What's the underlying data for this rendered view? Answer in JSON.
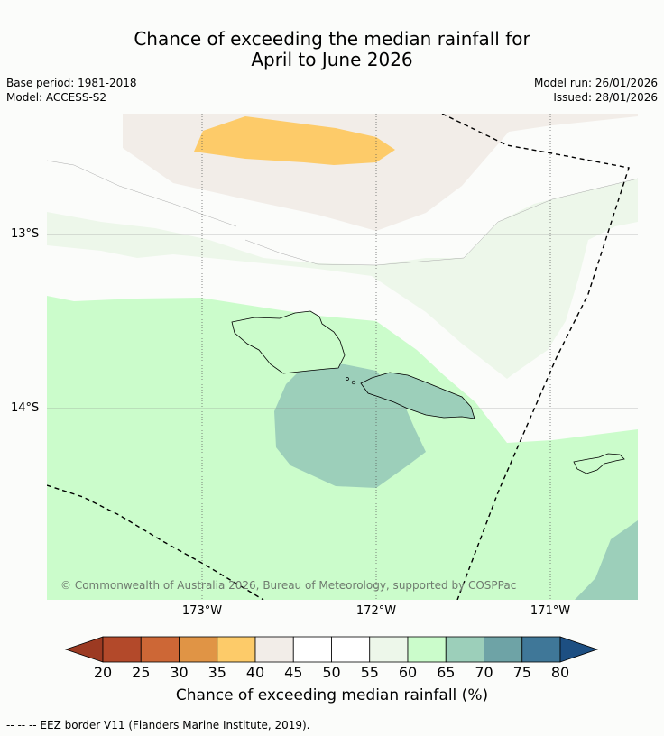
{
  "title": {
    "line1": "Chance of exceeding the median rainfall for",
    "line2": "April to June 2026"
  },
  "meta": {
    "base_period": "Base period: 1981-2018",
    "model": "Model: ACCESS-S2",
    "model_run": "Model run: 26/01/2026",
    "issued": "Issued: 28/01/2026"
  },
  "map": {
    "lat_labels": [
      "13°S",
      "14°S"
    ],
    "lon_labels": [
      "173°W",
      "172°W",
      "171°W"
    ],
    "copyright": "© Commonwealth of Australia 2026, Bureau of Meteorology, supported by COSPPac"
  },
  "colorbar": {
    "label": "Chance of exceeding median rainfall (%)",
    "ticks": [
      "20",
      "25",
      "30",
      "35",
      "40",
      "45",
      "50",
      "55",
      "60",
      "65",
      "70",
      "75",
      "80"
    ],
    "colors": [
      "#b3492a",
      "#cd6736",
      "#e09445",
      "#fdcb69",
      "#f2ede8",
      "#ffffff",
      "#ffffff",
      "#edf7ea",
      "#cbfccb",
      "#9ccfba",
      "#6ea3a6",
      "#3f7798"
    ],
    "under_color": "#9c3a22",
    "over_color": "#1d4f82"
  },
  "footer": {
    "eez_legend": "--  --  -- EEZ border V11 (Flanders Marine Institute, 2019)."
  }
}
